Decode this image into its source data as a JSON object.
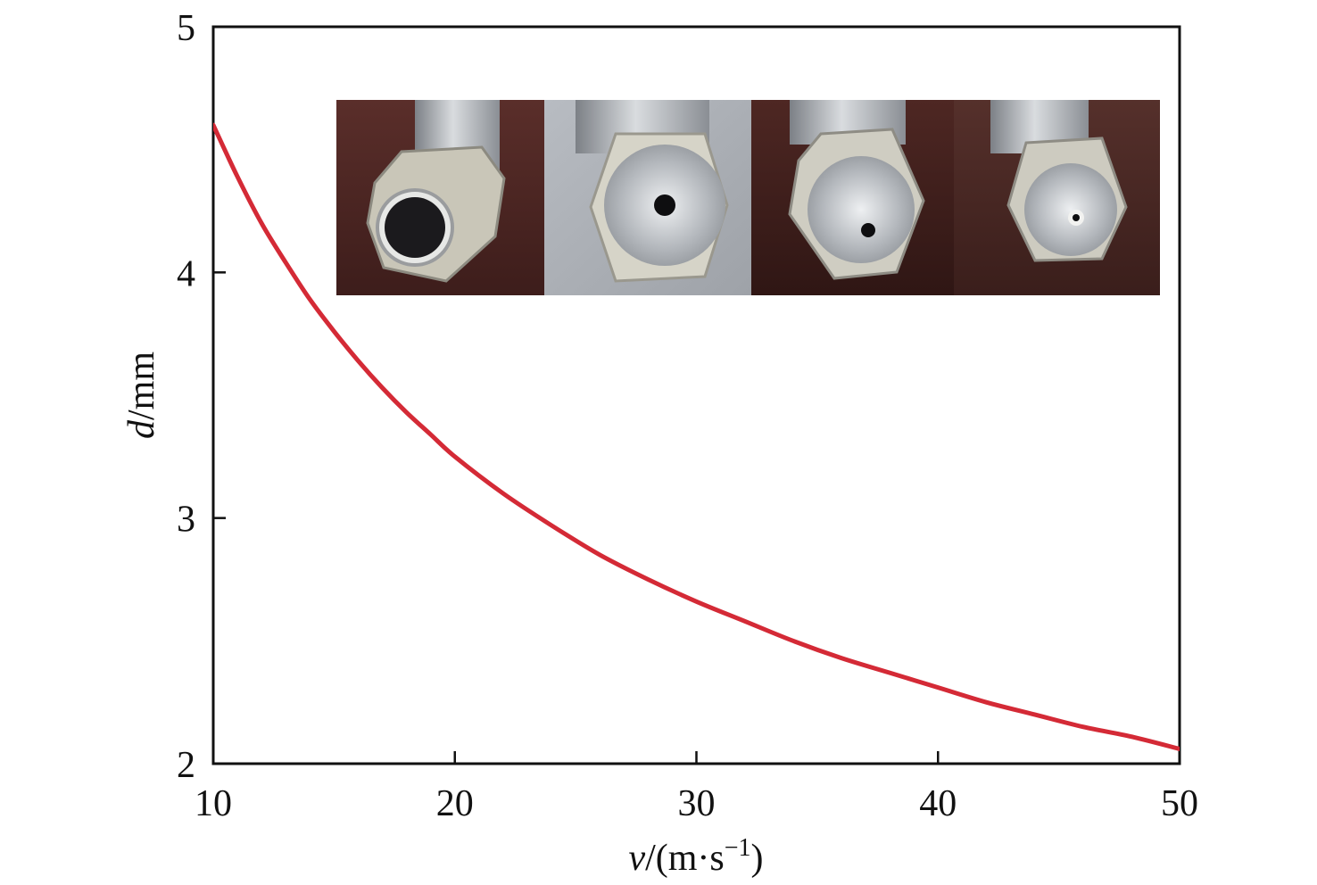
{
  "chart_data": {
    "type": "line",
    "title": "",
    "xlabel": {
      "var": "v",
      "unit_open": "/(m·s",
      "unit_sup": "−1",
      "unit_close": ")"
    },
    "ylabel": {
      "var": "d",
      "unit": "/mm"
    },
    "xlim": [
      10,
      50
    ],
    "ylim": [
      2,
      5
    ],
    "xticks": [
      10,
      20,
      30,
      40,
      50
    ],
    "yticks": [
      2,
      3,
      4,
      5
    ],
    "grid": false,
    "legend": "none",
    "series": [
      {
        "color": "#d42a36",
        "x": [
          10,
          11,
          12,
          13,
          14,
          15,
          16,
          17,
          18,
          19,
          20,
          22,
          24,
          26,
          28,
          30,
          32,
          34,
          36,
          38,
          40,
          42,
          44,
          46,
          48,
          50
        ],
        "y": [
          4.6,
          4.39,
          4.2,
          4.04,
          3.89,
          3.76,
          3.64,
          3.53,
          3.43,
          3.34,
          3.25,
          3.1,
          2.97,
          2.85,
          2.75,
          2.66,
          2.58,
          2.5,
          2.43,
          2.37,
          2.31,
          2.25,
          2.2,
          2.15,
          2.11,
          2.06
        ]
      }
    ],
    "inset": {
      "kind": "photo",
      "description_icon": "nozzle-photo-strip",
      "panels": 4,
      "orifice_sizes": [
        "large",
        "medium",
        "small",
        "smallest"
      ]
    }
  }
}
